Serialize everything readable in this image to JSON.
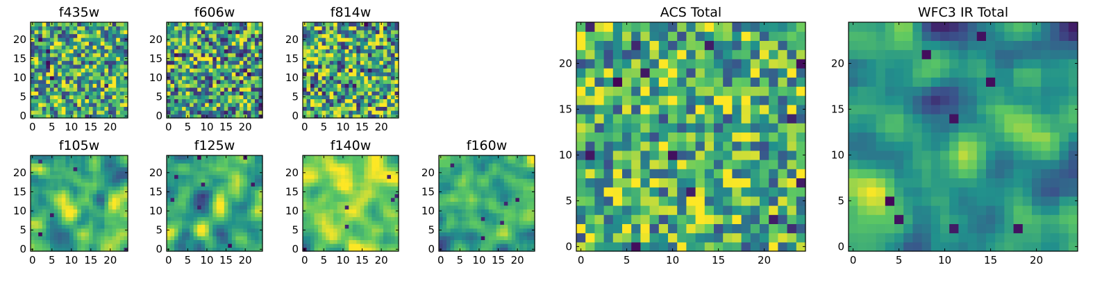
{
  "figure": {
    "colormap": "viridis",
    "background": "#ffffff",
    "colormap_stops": [
      "#440154",
      "#3b528b",
      "#21918c",
      "#5ec962",
      "#fde725"
    ]
  },
  "chart_data": [
    {
      "type": "heatmap",
      "title": "f435w",
      "grid_size": 25,
      "xticks": [
        0,
        5,
        10,
        15,
        20
      ],
      "yticks": [
        0,
        5,
        10,
        15,
        20
      ],
      "seed": 11,
      "smoothness": 0,
      "contrast": 0.55,
      "mean": 0.62,
      "dark_spots": 7,
      "noise_style": "white"
    },
    {
      "type": "heatmap",
      "title": "f606w",
      "grid_size": 25,
      "xticks": [
        0,
        5,
        10,
        15,
        20
      ],
      "yticks": [
        0,
        5,
        10,
        15,
        20
      ],
      "seed": 22,
      "smoothness": 0,
      "contrast": 0.6,
      "mean": 0.58,
      "dark_spots": 12,
      "noise_style": "white"
    },
    {
      "type": "heatmap",
      "title": "f814w",
      "grid_size": 25,
      "xticks": [
        0,
        5,
        10,
        15,
        20
      ],
      "yticks": [
        0,
        5,
        10,
        15,
        20
      ],
      "seed": 33,
      "smoothness": 0,
      "contrast": 0.6,
      "mean": 0.6,
      "dark_spots": 10,
      "noise_style": "white"
    },
    {
      "type": "heatmap",
      "title": "f105w",
      "grid_size": 25,
      "xticks": [
        0,
        5,
        10,
        15,
        20
      ],
      "yticks": [
        0,
        5,
        10,
        15,
        20
      ],
      "seed": 44,
      "smoothness": 2,
      "contrast": 0.5,
      "mean": 0.68,
      "dark_spots": 5,
      "noise_style": "correlated"
    },
    {
      "type": "heatmap",
      "title": "f125w",
      "grid_size": 25,
      "xticks": [
        0,
        5,
        10,
        15,
        20
      ],
      "yticks": [
        0,
        5,
        10,
        15,
        20
      ],
      "seed": 55,
      "smoothness": 2,
      "contrast": 0.55,
      "mean": 0.62,
      "dark_spots": 8,
      "noise_style": "correlated"
    },
    {
      "type": "heatmap",
      "title": "f140w",
      "grid_size": 25,
      "xticks": [
        0,
        5,
        10,
        15,
        20
      ],
      "yticks": [
        0,
        5,
        10,
        15,
        20
      ],
      "seed": 66,
      "smoothness": 2,
      "contrast": 0.5,
      "mean": 0.7,
      "dark_spots": 6,
      "noise_style": "correlated"
    },
    {
      "type": "heatmap",
      "title": "f160w",
      "grid_size": 25,
      "xticks": [
        0,
        5,
        10,
        15,
        20
      ],
      "yticks": [
        0,
        5,
        10,
        15,
        20
      ],
      "seed": 77,
      "smoothness": 2,
      "contrast": 0.55,
      "mean": 0.64,
      "dark_spots": 6,
      "noise_style": "correlated"
    },
    {
      "type": "heatmap",
      "title": "ACS Total",
      "grid_size": 25,
      "xticks": [
        0,
        5,
        10,
        15,
        20
      ],
      "yticks": [
        0,
        5,
        10,
        15,
        20
      ],
      "seed": 88,
      "smoothness": 0,
      "contrast": 0.5,
      "mean": 0.64,
      "dark_spots": 14,
      "noise_style": "white"
    },
    {
      "type": "heatmap",
      "title": "WFC3 IR Total",
      "grid_size": 25,
      "xticks": [
        0,
        5,
        10,
        15,
        20
      ],
      "yticks": [
        0,
        5,
        10,
        15,
        20
      ],
      "seed": 99,
      "smoothness": 2,
      "contrast": 0.55,
      "mean": 0.55,
      "dark_spots": 10,
      "noise_style": "correlated"
    }
  ]
}
